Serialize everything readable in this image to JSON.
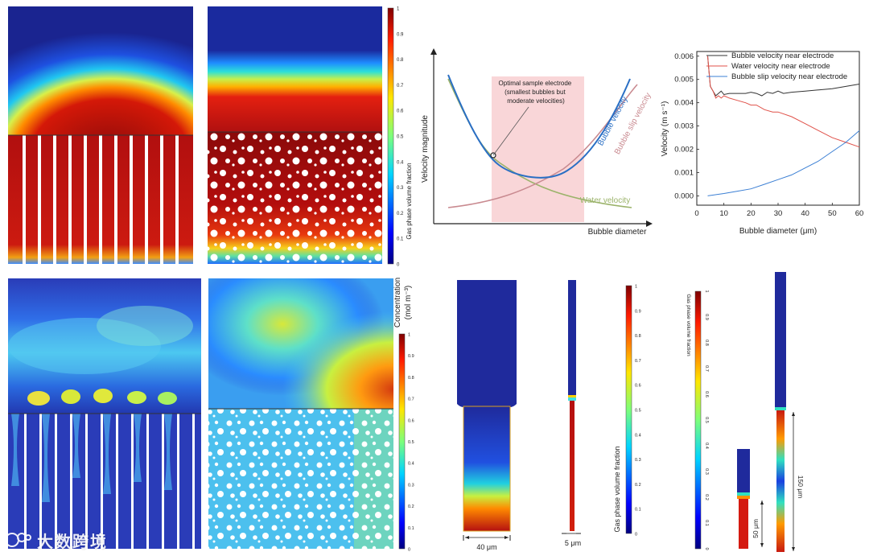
{
  "colorbars": {
    "gas_fraction_label": "Gas phase volume fraction",
    "concentration_label": "Concentration",
    "concentration_unit": "(mol m⁻³)",
    "ticks": [
      "0",
      "0.1",
      "0.2",
      "0.3",
      "0.4",
      "0.5",
      "0.6",
      "0.7",
      "0.8",
      "0.9",
      "1"
    ]
  },
  "schematic": {
    "ylabel": "Velocity magnitude",
    "xlabel": "Bubble diameter",
    "annotation": [
      "Optimal sample electrode",
      "(smallest bubbles but",
      "moderate velocities)"
    ],
    "curves": {
      "bubble": "Bubble velocity",
      "slip": "Bubble slip velocity",
      "water": "Water velocity"
    },
    "colors": {
      "bubble": "#2a6fc4",
      "slip": "#c98a90",
      "water": "#9bb36a",
      "band": "#f9d6d8"
    }
  },
  "chart_data": {
    "type": "line",
    "title": "",
    "xlabel": "Bubble diameter (μm)",
    "ylabel": "Velocity (m s⁻¹)",
    "xlim": [
      0,
      60
    ],
    "ylim": [
      -0.0004,
      0.0062
    ],
    "xticks": [
      0,
      10,
      20,
      30,
      40,
      50,
      60
    ],
    "yticks": [
      0.0,
      0.001,
      0.002,
      0.003,
      0.004,
      0.005,
      0.006
    ],
    "ytick_labels": [
      "0.000",
      "0.001",
      "0.002",
      "0.003",
      "0.004",
      "0.005",
      "0.006"
    ],
    "legend_position": "top-right",
    "series": [
      {
        "name": "Bubble velocity near electrode",
        "color": "#333333",
        "x": [
          4,
          5,
          6,
          7,
          8,
          9,
          10,
          12,
          15,
          18,
          20,
          22,
          24,
          26,
          28,
          30,
          32,
          35,
          40,
          45,
          50,
          55,
          60
        ],
        "y": [
          0.006,
          0.0047,
          0.0045,
          0.0043,
          0.0044,
          0.0045,
          0.00435,
          0.0044,
          0.0044,
          0.0044,
          0.00445,
          0.0044,
          0.0043,
          0.00445,
          0.0044,
          0.0045,
          0.0044,
          0.00445,
          0.0045,
          0.00455,
          0.0046,
          0.0047,
          0.0048
        ]
      },
      {
        "name": "Water velocity near electrode",
        "color": "#e0524a",
        "x": [
          4,
          5,
          6,
          7,
          8,
          9,
          10,
          12,
          15,
          18,
          20,
          22,
          25,
          28,
          30,
          35,
          40,
          45,
          50,
          55,
          60
        ],
        "y": [
          0.006,
          0.0047,
          0.0045,
          0.0042,
          0.0043,
          0.0042,
          0.0043,
          0.0042,
          0.0041,
          0.004,
          0.0039,
          0.0039,
          0.0037,
          0.0036,
          0.0036,
          0.0034,
          0.0031,
          0.0028,
          0.0025,
          0.0023,
          0.0021
        ]
      },
      {
        "name": "Bubble slip velocity near electrode",
        "color": "#3b7fd4",
        "x": [
          4,
          10,
          15,
          20,
          25,
          30,
          35,
          40,
          45,
          50,
          55,
          60
        ],
        "y": [
          0.0,
          0.0001,
          0.0002,
          0.0003,
          0.0005,
          0.0007,
          0.0009,
          0.0012,
          0.0015,
          0.0019,
          0.0023,
          0.0028
        ]
      }
    ]
  },
  "dimensions": {
    "w40": "40 μm",
    "w5": "5 μm",
    "h50": "50 μm",
    "h150": "150 μm"
  },
  "watermark": "大数跨境"
}
